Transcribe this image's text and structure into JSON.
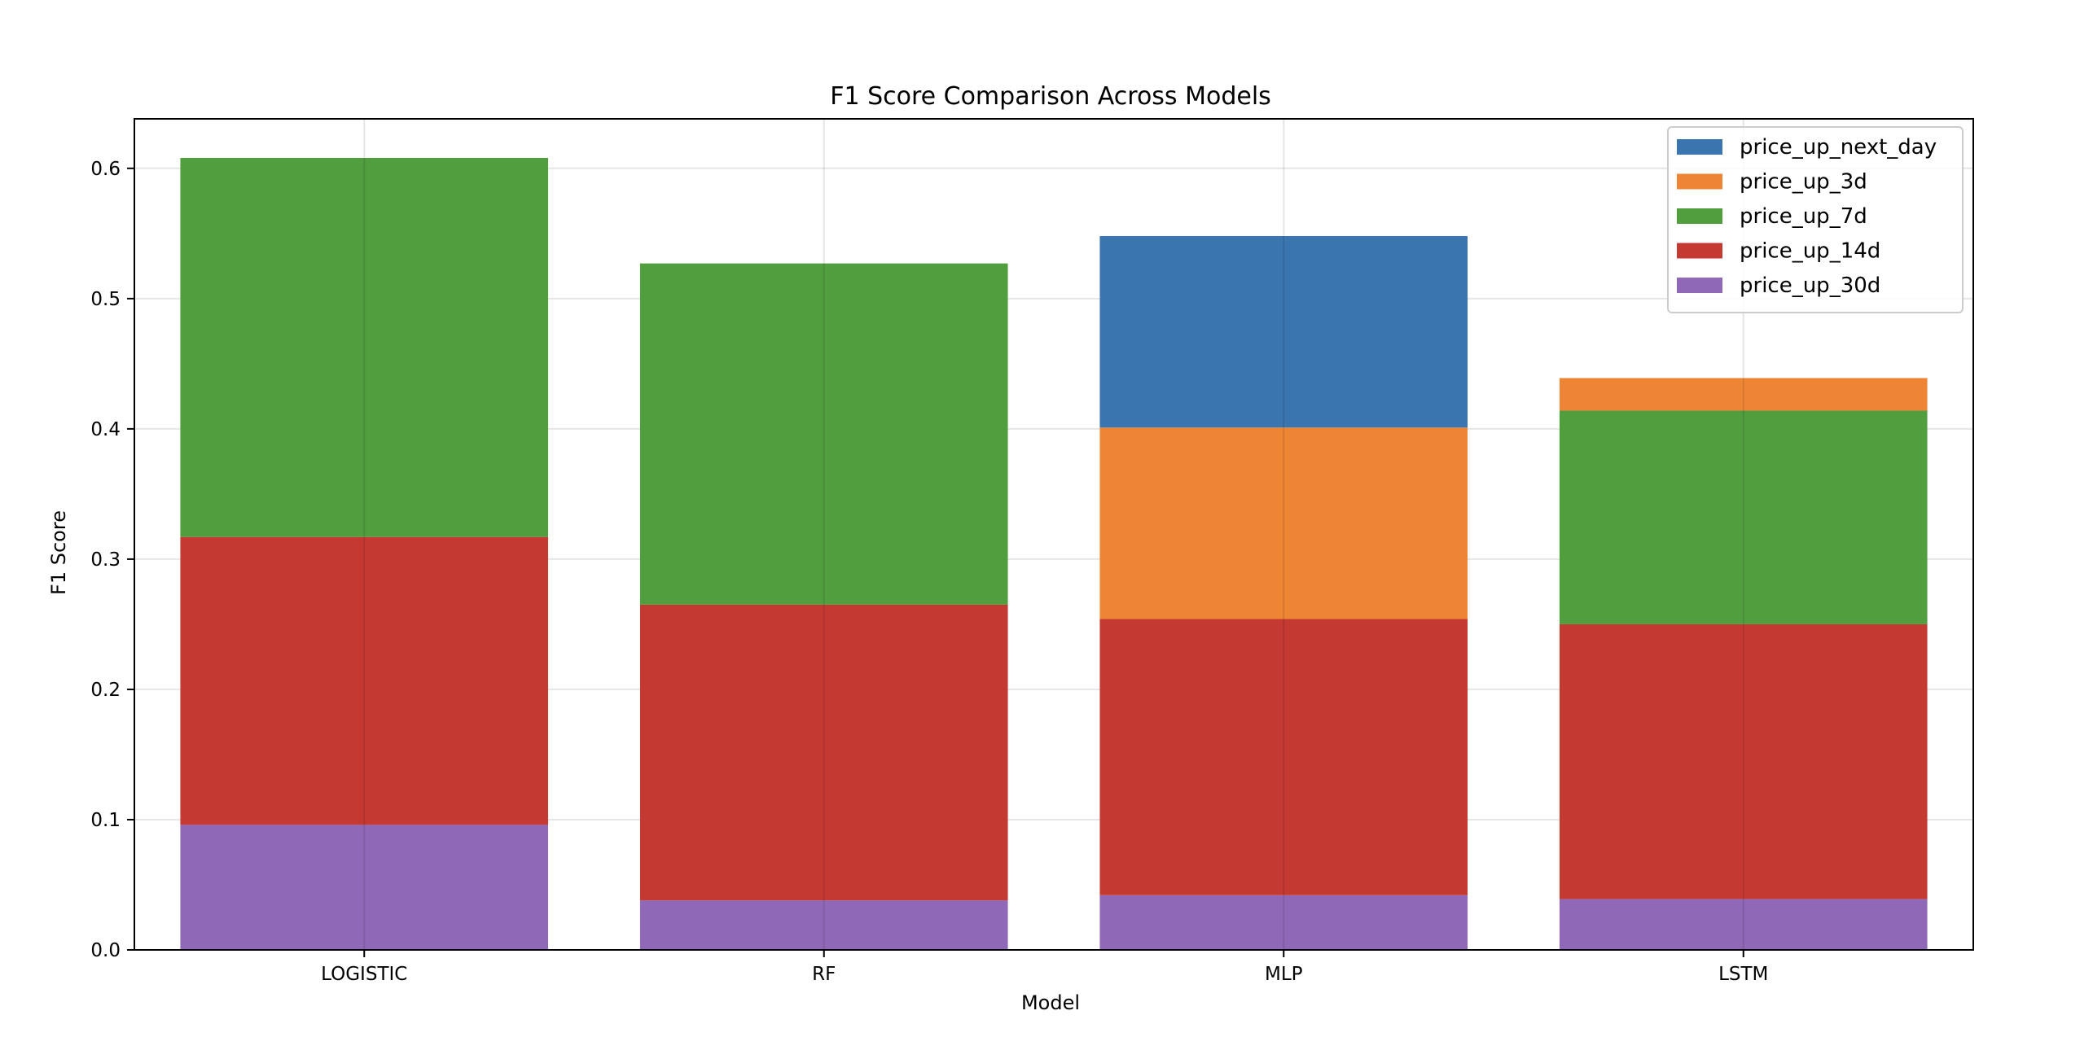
{
  "chart_data": {
    "type": "bar",
    "stacked": true,
    "title": "F1 Score Comparison Across Models",
    "xlabel": "Model",
    "ylabel": "F1 Score",
    "categories": [
      "LOGISTIC",
      "RF",
      "MLP",
      "LSTM"
    ],
    "ylim": [
      0,
      0.638
    ],
    "yticks": [
      0.0,
      0.1,
      0.2,
      0.3,
      0.4,
      0.5,
      0.6
    ],
    "ytick_labels": [
      "0.0",
      "0.1",
      "0.2",
      "0.3",
      "0.4",
      "0.5",
      "0.6"
    ],
    "grid": true,
    "legend_position": "top-right",
    "legend_order": [
      "price_up_next_day",
      "price_up_3d",
      "price_up_7d",
      "price_up_14d",
      "price_up_30d"
    ],
    "series": [
      {
        "name": "price_up_30d",
        "color": "#8f68b7",
        "values": [
          0.096,
          0.038,
          0.042,
          0.039
        ]
      },
      {
        "name": "price_up_14d",
        "color": "#c43a33",
        "values": [
          0.221,
          0.227,
          0.212,
          0.211
        ]
      },
      {
        "name": "price_up_7d",
        "color": "#519e3e",
        "values": [
          0.291,
          0.262,
          0.0,
          0.164
        ]
      },
      {
        "name": "price_up_3d",
        "color": "#ee8535",
        "values": [
          0.0,
          0.0,
          0.147,
          0.025
        ]
      },
      {
        "name": "price_up_next_day",
        "color": "#3b75af",
        "values": [
          0.0,
          0.0,
          0.147,
          0.0
        ]
      }
    ]
  }
}
